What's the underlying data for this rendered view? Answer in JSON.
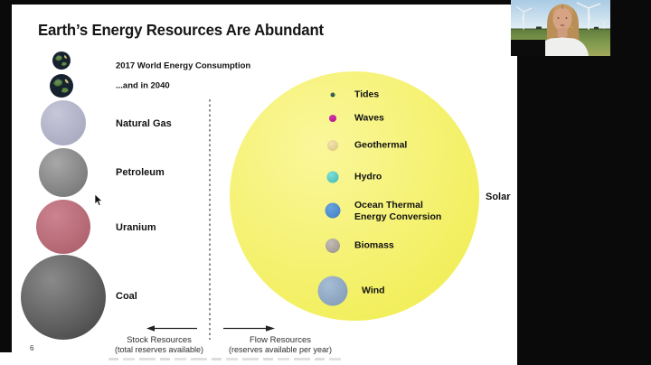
{
  "slide": {
    "title": "Earth’s Energy Resources Are Abundant",
    "page_number": "6",
    "consumption": [
      {
        "label": "2017 World Energy Consumption",
        "d": 20
      },
      {
        "label": "...and in 2040",
        "d": 26
      }
    ],
    "stock_resources": {
      "axis_label": "Stock Resources",
      "axis_sublabel": "(total reserves available)",
      "items": [
        {
          "name": "Natural Gas",
          "d": 50,
          "hi": "#c6c7d8",
          "lo": "#a2a3bb"
        },
        {
          "name": "Petroleum",
          "d": 54,
          "hi": "#a8a8a8",
          "lo": "#6e6e6e"
        },
        {
          "name": "Uranium",
          "d": 60,
          "hi": "#cc8490",
          "lo": "#a85a66"
        },
        {
          "name": "Coal",
          "d": 94,
          "hi": "#8a8a8a",
          "lo": "#3f3f3f"
        }
      ]
    },
    "flow_resources": {
      "axis_label": "Flow Resources",
      "axis_sublabel": "(reserves available per year)",
      "solar": {
        "name": "Solar",
        "d": 276,
        "hi": "#faf79b",
        "lo": "#f0ec4a"
      },
      "items": [
        {
          "name": "Tides",
          "d": 5,
          "hi": "#3a6b5e",
          "lo": "#234a40"
        },
        {
          "name": "Waves",
          "d": 8,
          "hi": "#d13aad",
          "lo": "#b10787"
        },
        {
          "name": "Geothermal",
          "d": 12,
          "hi": "#f2e3b0",
          "lo": "#dcc27c"
        },
        {
          "name": "Hydro",
          "d": 13,
          "hi": "#7edfd8",
          "lo": "#3db8b0"
        },
        {
          "name": "Ocean Thermal Energy Conversion",
          "line1": "Ocean Thermal",
          "line2": "Energy Conversion",
          "d": 17,
          "hi": "#6aa4de",
          "lo": "#3c7cc0"
        },
        {
          "name": "Biomass",
          "d": 16,
          "hi": "#c2bdb4",
          "lo": "#96908a"
        },
        {
          "name": "Wind",
          "d": 33,
          "hi": "#a7bdd6",
          "lo": "#7e97b4"
        }
      ]
    }
  }
}
